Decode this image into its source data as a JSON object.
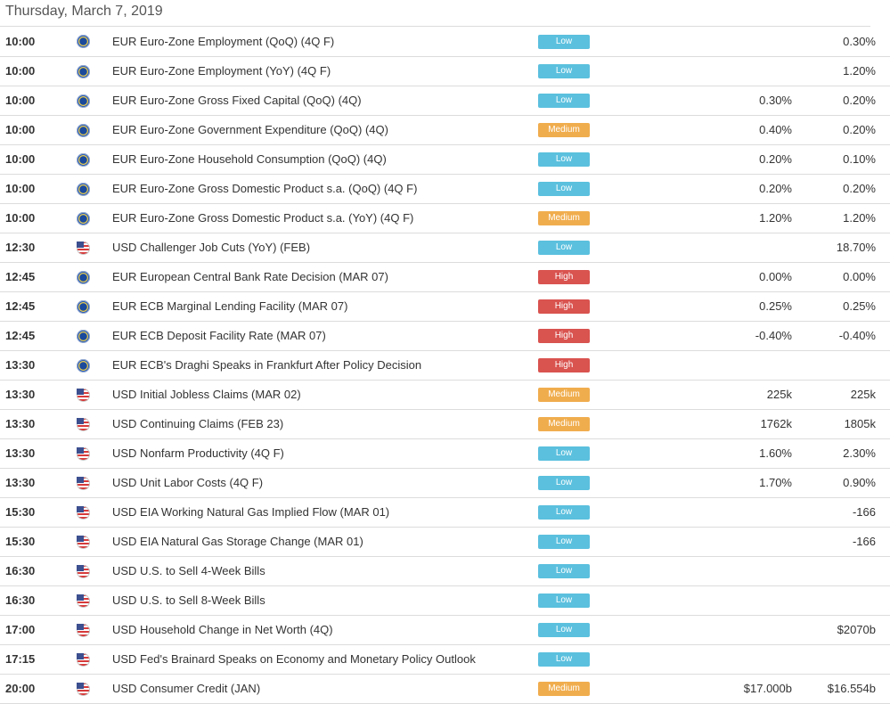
{
  "date_header": "Thursday, March 7, 2019",
  "colors": {
    "low": "#5bc0de",
    "medium": "#f0ad4e",
    "high": "#d9534f"
  },
  "rows": [
    {
      "time": "10:00",
      "flag": "eu",
      "event": "EUR Euro-Zone Employment (QoQ) (4Q F)",
      "importance": "Low",
      "forecast": "",
      "previous": "0.30%"
    },
    {
      "time": "10:00",
      "flag": "eu",
      "event": "EUR Euro-Zone Employment (YoY) (4Q F)",
      "importance": "Low",
      "forecast": "",
      "previous": "1.20%"
    },
    {
      "time": "10:00",
      "flag": "eu",
      "event": "EUR Euro-Zone Gross Fixed Capital (QoQ) (4Q)",
      "importance": "Low",
      "forecast": "0.30%",
      "previous": "0.20%"
    },
    {
      "time": "10:00",
      "flag": "eu",
      "event": "EUR Euro-Zone Government Expenditure (QoQ) (4Q)",
      "importance": "Medium",
      "forecast": "0.40%",
      "previous": "0.20%"
    },
    {
      "time": "10:00",
      "flag": "eu",
      "event": "EUR Euro-Zone Household Consumption (QoQ) (4Q)",
      "importance": "Low",
      "forecast": "0.20%",
      "previous": "0.10%"
    },
    {
      "time": "10:00",
      "flag": "eu",
      "event": "EUR Euro-Zone Gross Domestic Product s.a. (QoQ) (4Q F)",
      "importance": "Low",
      "forecast": "0.20%",
      "previous": "0.20%"
    },
    {
      "time": "10:00",
      "flag": "eu",
      "event": "EUR Euro-Zone Gross Domestic Product s.a. (YoY) (4Q F)",
      "importance": "Medium",
      "forecast": "1.20%",
      "previous": "1.20%"
    },
    {
      "time": "12:30",
      "flag": "us",
      "event": "USD Challenger Job Cuts (YoY) (FEB)",
      "importance": "Low",
      "forecast": "",
      "previous": "18.70%"
    },
    {
      "time": "12:45",
      "flag": "eu",
      "event": "EUR European Central Bank Rate Decision (MAR 07)",
      "importance": "High",
      "forecast": "0.00%",
      "previous": "0.00%"
    },
    {
      "time": "12:45",
      "flag": "eu",
      "event": "EUR ECB Marginal Lending Facility (MAR 07)",
      "importance": "High",
      "forecast": "0.25%",
      "previous": "0.25%"
    },
    {
      "time": "12:45",
      "flag": "eu",
      "event": "EUR ECB Deposit Facility Rate (MAR 07)",
      "importance": "High",
      "forecast": "-0.40%",
      "previous": "-0.40%"
    },
    {
      "time": "13:30",
      "flag": "eu",
      "event": "EUR ECB's Draghi Speaks in Frankfurt After Policy Decision",
      "importance": "High",
      "forecast": "",
      "previous": ""
    },
    {
      "time": "13:30",
      "flag": "us",
      "event": "USD Initial Jobless Claims (MAR 02)",
      "importance": "Medium",
      "forecast": "225k",
      "previous": "225k"
    },
    {
      "time": "13:30",
      "flag": "us",
      "event": "USD Continuing Claims (FEB 23)",
      "importance": "Medium",
      "forecast": "1762k",
      "previous": "1805k"
    },
    {
      "time": "13:30",
      "flag": "us",
      "event": "USD Nonfarm Productivity (4Q F)",
      "importance": "Low",
      "forecast": "1.60%",
      "previous": "2.30%"
    },
    {
      "time": "13:30",
      "flag": "us",
      "event": "USD Unit Labor Costs (4Q F)",
      "importance": "Low",
      "forecast": "1.70%",
      "previous": "0.90%"
    },
    {
      "time": "15:30",
      "flag": "us",
      "event": "USD EIA Working Natural Gas Implied Flow (MAR 01)",
      "importance": "Low",
      "forecast": "",
      "previous": "-166"
    },
    {
      "time": "15:30",
      "flag": "us",
      "event": "USD EIA Natural Gas Storage Change (MAR 01)",
      "importance": "Low",
      "forecast": "",
      "previous": "-166"
    },
    {
      "time": "16:30",
      "flag": "us",
      "event": "USD U.S. to Sell 4-Week Bills",
      "importance": "Low",
      "forecast": "",
      "previous": ""
    },
    {
      "time": "16:30",
      "flag": "us",
      "event": "USD U.S. to Sell 8-Week Bills",
      "importance": "Low",
      "forecast": "",
      "previous": ""
    },
    {
      "time": "17:00",
      "flag": "us",
      "event": "USD Household Change in Net Worth (4Q)",
      "importance": "Low",
      "forecast": "",
      "previous": "$2070b"
    },
    {
      "time": "17:15",
      "flag": "us",
      "event": "USD Fed's Brainard Speaks on Economy and Monetary Policy Outlook",
      "importance": "Low",
      "forecast": "",
      "previous": ""
    },
    {
      "time": "20:00",
      "flag": "us",
      "event": "USD Consumer Credit (JAN)",
      "importance": "Medium",
      "forecast": "$17.000b",
      "previous": "$16.554b"
    }
  ]
}
